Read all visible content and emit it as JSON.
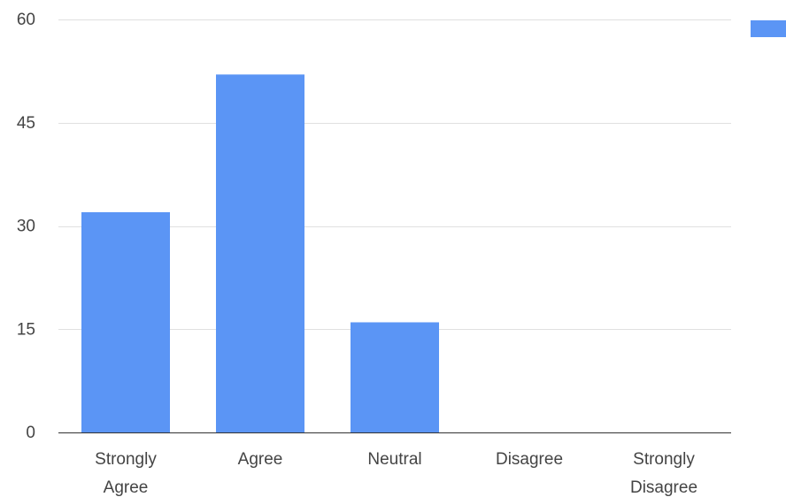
{
  "chart_data": {
    "type": "bar",
    "categories": [
      [
        "Strongly",
        "Agree"
      ],
      [
        "Agree"
      ],
      [
        "Neutral"
      ],
      [
        "Disagree"
      ],
      [
        "Strongly",
        "Disagree"
      ]
    ],
    "series": [
      {
        "values": [
          32,
          52,
          16,
          0,
          0
        ],
        "color": "#5b95f5"
      }
    ],
    "ylim": [
      0,
      60
    ],
    "yticks": [
      0,
      15,
      30,
      45,
      60
    ],
    "title": "",
    "xlabel": "",
    "ylabel": "",
    "grid": true,
    "legend": {
      "position": "top-right",
      "entries": [
        {
          "color": "#5b95f5"
        }
      ]
    }
  }
}
